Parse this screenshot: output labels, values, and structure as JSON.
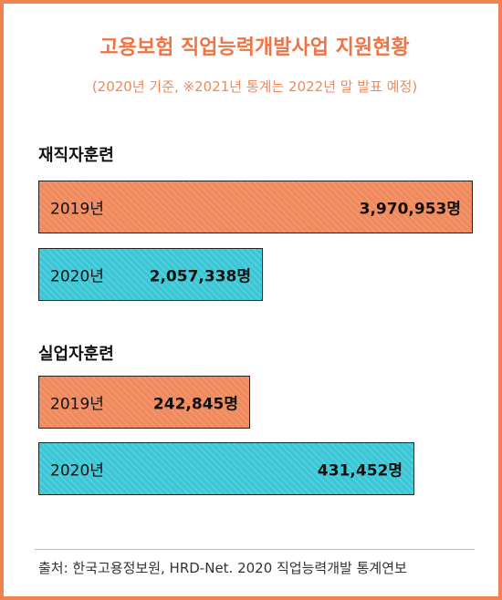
{
  "title": "고용보험 직업능력개발사업 지원현황",
  "subtitle": "(2020년 기준, ※2021년 통계는 2022년 말 발표 예정)",
  "colors": {
    "border": "#f08150",
    "year2019": "#f08a5d",
    "year2020": "#3cc7d6",
    "title": "#ee7444"
  },
  "chart_data": {
    "type": "bar",
    "orientation": "horizontal",
    "groups": [
      {
        "name": "재직자훈련",
        "bars": [
          {
            "year": "2019년",
            "value": 3970953,
            "label": "3,970,953명",
            "color": "orange"
          },
          {
            "year": "2020년",
            "value": 2057338,
            "label": "2,057,338명",
            "color": "cyan"
          }
        ]
      },
      {
        "name": "실업자훈련",
        "bars": [
          {
            "year": "2019년",
            "value": 242845,
            "label": "242,845명",
            "color": "orange"
          },
          {
            "year": "2020년",
            "value": 431452,
            "label": "431,452명",
            "color": "cyan"
          }
        ]
      }
    ]
  },
  "source": "출처: 한국고용정보원, HRD-Net. 2020 직업능력개발 통계연보"
}
